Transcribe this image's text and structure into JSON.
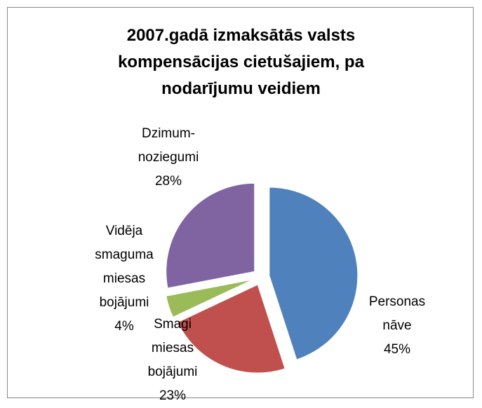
{
  "chart_data": {
    "type": "pie",
    "title": "2007.gadā izmaksātās valsts\nkompensācijas cietušajiem, pa\nnodarījumu veidiem",
    "categories": [
      "Personas\nnāve",
      "Smagi\nmiesas\nbojājumi",
      "Vidēja\nsmaguma\nmiesas\nbojājumi",
      "Dzimum-\nnoziegumi"
    ],
    "values": [
      45,
      23,
      4,
      28
    ],
    "value_labels": [
      "45%",
      "23%",
      "4%",
      "28%"
    ],
    "colors": [
      "#4f81bd",
      "#c0504d",
      "#9bbb59",
      "#8064a2"
    ]
  }
}
